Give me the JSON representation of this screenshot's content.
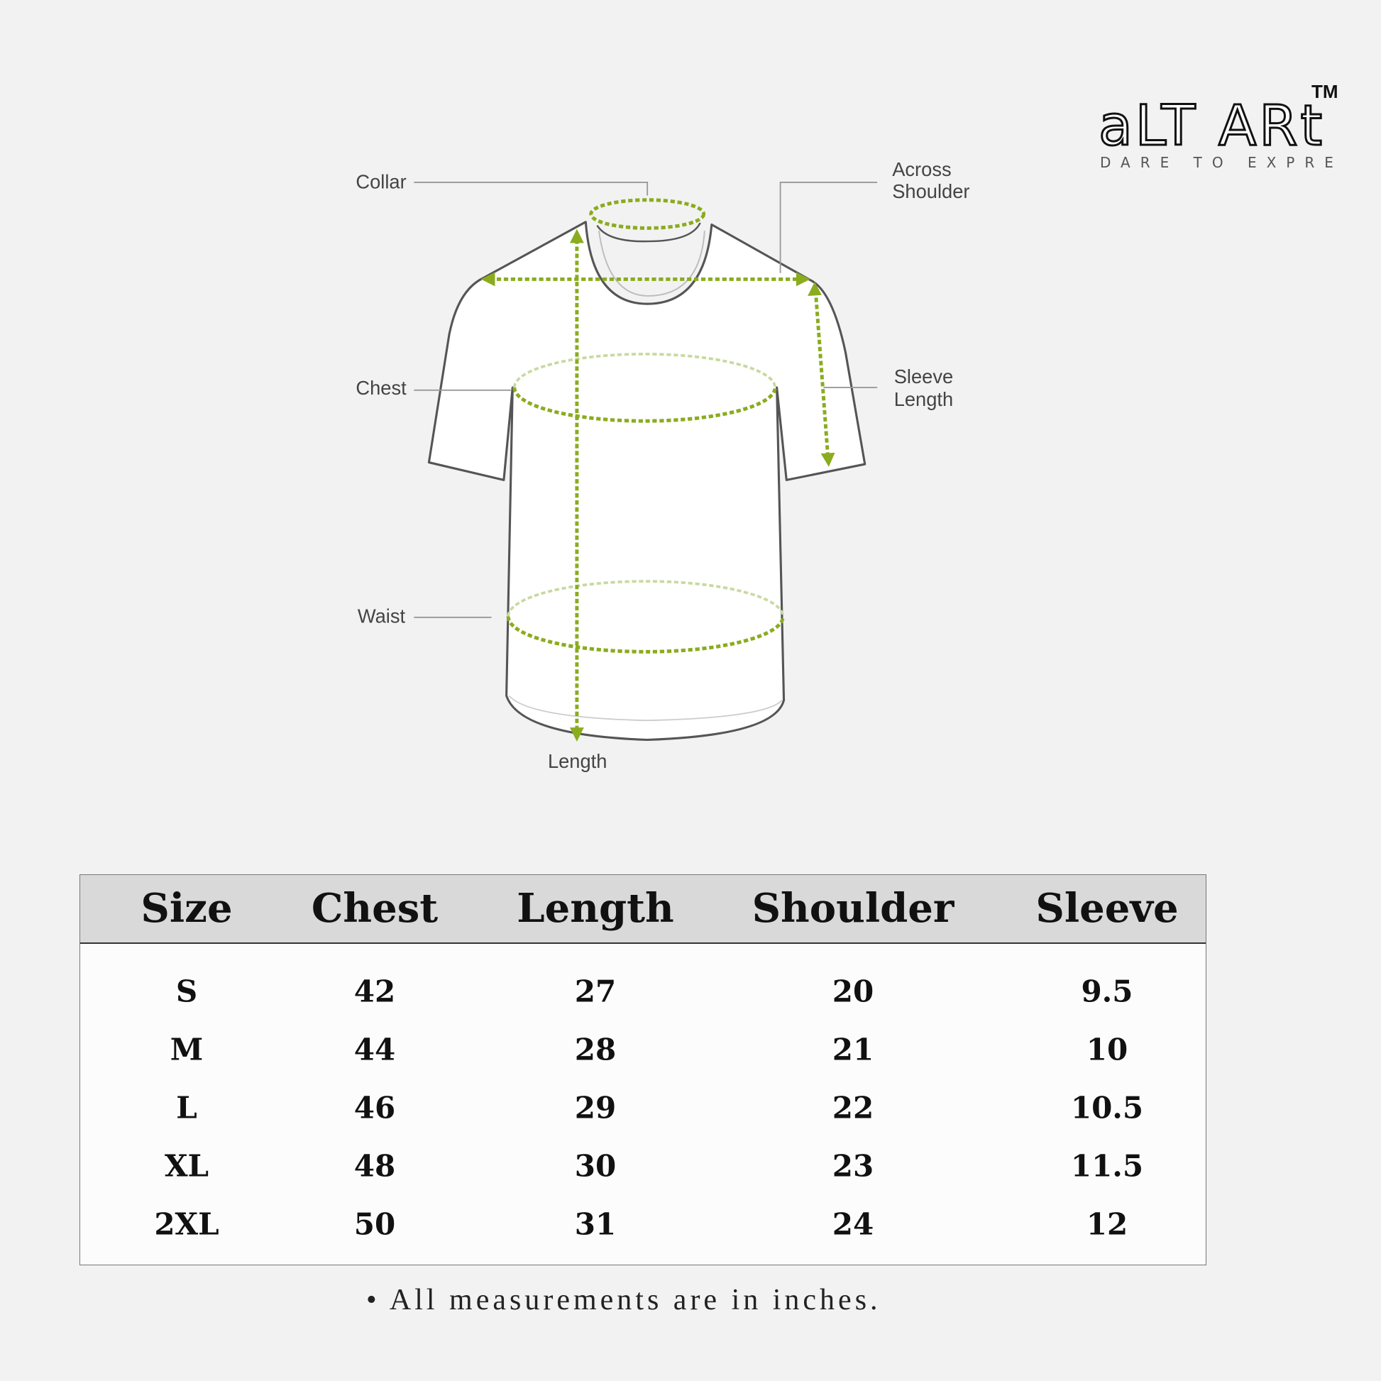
{
  "brand": {
    "name": "aLT ART",
    "trademark": "TM",
    "tagline": "DARE TO EXPRESS"
  },
  "diagram": {
    "labels": {
      "collar": "Collar",
      "across_shoulder_1": "Across",
      "across_shoulder_2": "Shoulder",
      "chest": "Chest",
      "sleeve_length_1": "Sleeve",
      "sleeve_length_2": "Length",
      "waist": "Waist",
      "length": "Length"
    },
    "colors": {
      "measure": "#8aac1e",
      "outline": "#555555",
      "shirt": "#ffffff"
    }
  },
  "table": {
    "headers": [
      "Size",
      "Chest",
      "Length",
      "Shoulder",
      "Sleeve"
    ],
    "rows": [
      [
        "S",
        "42",
        "27",
        "20",
        "9.5"
      ],
      [
        "M",
        "44",
        "28",
        "21",
        "10"
      ],
      [
        "L",
        "46",
        "29",
        "22",
        "10.5"
      ],
      [
        "XL",
        "48",
        "30",
        "23",
        "11.5"
      ],
      [
        "2XL",
        "50",
        "31",
        "24",
        "12"
      ]
    ]
  },
  "footnote": "All measurements are in inches."
}
